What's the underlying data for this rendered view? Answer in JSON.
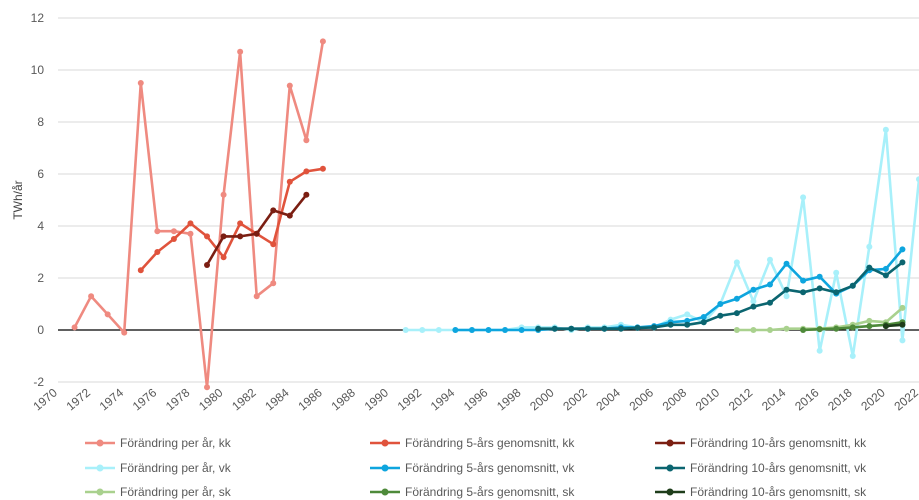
{
  "chart_data": {
    "type": "line",
    "title": "",
    "xlabel": "",
    "ylabel": "TWh/år",
    "xlim": [
      1970,
      2022
    ],
    "ylim": [
      -2,
      12
    ],
    "x_ticks": [
      "1970",
      "1972",
      "1974",
      "1976",
      "1978",
      "1980",
      "1982",
      "1984",
      "1986",
      "1988",
      "1990",
      "1992",
      "1994",
      "1996",
      "1998",
      "2000",
      "2002",
      "2004",
      "2006",
      "2008",
      "2010",
      "2012",
      "2014",
      "2016",
      "2018",
      "2020",
      "2022"
    ],
    "y_ticks": [
      "-2",
      "0",
      "2",
      "4",
      "6",
      "8",
      "10",
      "12"
    ],
    "grid": "horizontal",
    "legend_position": "bottom",
    "series": [
      {
        "name": "Förändring per år, kk",
        "color": "#EF8A80",
        "width": 2.6,
        "x": [
          1971,
          1972,
          1973,
          1974,
          1975,
          1976,
          1977,
          1978,
          1979,
          1980,
          1981,
          1982,
          1983,
          1984,
          1985,
          1986
        ],
        "values": [
          0.1,
          1.3,
          0.6,
          -0.1,
          9.5,
          3.8,
          3.8,
          3.7,
          -2.2,
          5.2,
          10.7,
          1.3,
          1.8,
          9.4,
          7.3,
          11.1
        ]
      },
      {
        "name": "Förändring 5-års genomsnitt, kk",
        "color": "#E0533C",
        "width": 2.6,
        "x": [
          1975,
          1976,
          1977,
          1978,
          1979,
          1980,
          1981,
          1982,
          1983,
          1984,
          1985,
          1986
        ],
        "values": [
          2.3,
          3.0,
          3.5,
          4.1,
          3.6,
          2.8,
          4.1,
          3.7,
          3.3,
          5.7,
          6.1,
          6.2
        ]
      },
      {
        "name": "Förändring 10-års genomsnitt, kk",
        "color": "#7B1E12",
        "width": 2.6,
        "x": [
          1979,
          1980,
          1981,
          1982,
          1983,
          1984,
          1985
        ],
        "values": [
          2.5,
          3.6,
          3.6,
          3.7,
          4.6,
          4.4,
          5.2
        ]
      },
      {
        "name": "Förändring per år, vk",
        "color": "#A8F0FA",
        "width": 2.6,
        "x": [
          1991,
          1992,
          1993,
          1994,
          1995,
          1996,
          1997,
          1998,
          1999,
          2000,
          2001,
          2002,
          2003,
          2004,
          2005,
          2006,
          2007,
          2008,
          2009,
          2010,
          2011,
          2012,
          2013,
          2014,
          2015,
          2016,
          2017,
          2018,
          2019,
          2020,
          2021,
          2022
        ],
        "values": [
          0.0,
          0.0,
          0.0,
          0.0,
          0.0,
          0.0,
          0.0,
          0.1,
          0.1,
          0.1,
          0.0,
          0.1,
          0.1,
          0.2,
          0.1,
          0.1,
          0.4,
          0.6,
          0.3,
          1.0,
          2.6,
          1.1,
          2.7,
          1.3,
          5.1,
          -0.8,
          2.2,
          -1.0,
          3.2,
          7.7,
          -0.4,
          5.8
        ]
      },
      {
        "name": "Förändring 5-års genomsnitt, vk",
        "color": "#0EA5DE",
        "width": 2.6,
        "x": [
          1994,
          1995,
          1996,
          1997,
          1998,
          1999,
          2000,
          2001,
          2002,
          2003,
          2004,
          2005,
          2006,
          2007,
          2008,
          2009,
          2010,
          2011,
          2012,
          2013,
          2014,
          2015,
          2016,
          2017,
          2018,
          2019,
          2020,
          2021
        ],
        "values": [
          0.0,
          0.0,
          0.0,
          0.0,
          0.0,
          0.0,
          0.05,
          0.05,
          0.05,
          0.05,
          0.1,
          0.1,
          0.15,
          0.3,
          0.35,
          0.5,
          1.0,
          1.2,
          1.55,
          1.75,
          2.55,
          1.9,
          2.05,
          1.4,
          1.7,
          2.3,
          2.35,
          3.1
        ]
      },
      {
        "name": "Förändring 10-års genomsnitt, vk",
        "color": "#0B6570",
        "width": 2.6,
        "x": [
          1999,
          2000,
          2001,
          2002,
          2003,
          2004,
          2005,
          2006,
          2007,
          2008,
          2009,
          2010,
          2011,
          2012,
          2013,
          2014,
          2015,
          2016,
          2017,
          2018,
          2019,
          2020,
          2021
        ],
        "values": [
          0.05,
          0.05,
          0.05,
          0.05,
          0.05,
          0.05,
          0.08,
          0.1,
          0.2,
          0.2,
          0.3,
          0.55,
          0.65,
          0.9,
          1.05,
          1.55,
          1.45,
          1.6,
          1.45,
          1.7,
          2.4,
          2.1,
          2.6
        ]
      },
      {
        "name": "Förändring per år, sk",
        "color": "#A9D18E",
        "width": 2.6,
        "x": [
          2011,
          2012,
          2013,
          2014,
          2015,
          2016,
          2017,
          2018,
          2019,
          2020,
          2021
        ],
        "values": [
          0.0,
          0.0,
          0.0,
          0.05,
          0.05,
          0.05,
          0.1,
          0.2,
          0.35,
          0.3,
          0.85
        ]
      },
      {
        "name": "Förändring 5-års genomsnitt, sk",
        "color": "#4E8A3A",
        "width": 2.6,
        "x": [
          2015,
          2016,
          2017,
          2018,
          2019,
          2020,
          2021
        ],
        "values": [
          0.0,
          0.03,
          0.05,
          0.1,
          0.15,
          0.2,
          0.3
        ]
      },
      {
        "name": "Förändring 10-års genomsnitt, sk",
        "color": "#1E3D1A",
        "width": 2.6,
        "x": [
          2020,
          2021
        ],
        "values": [
          0.15,
          0.2
        ]
      }
    ]
  }
}
